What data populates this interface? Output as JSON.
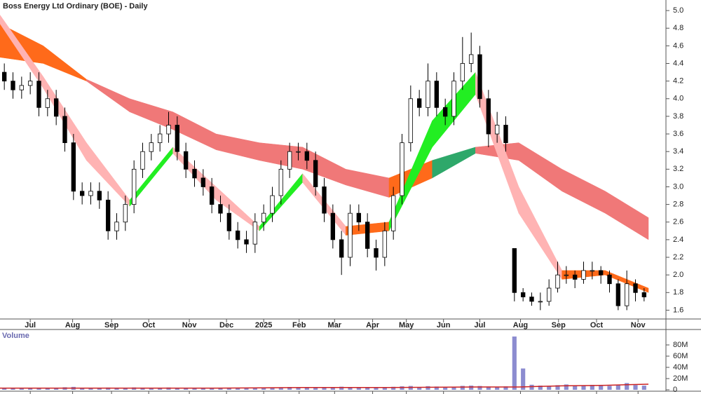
{
  "chart_data": {
    "type": "candlestick",
    "title": "Boss Energy Ltd Ordinary (BOE) - Daily",
    "xlim": [
      0,
      75
    ],
    "xticks": [
      {
        "value": 3.5,
        "label": "Jul"
      },
      {
        "value": 8.4,
        "label": "Aug"
      },
      {
        "value": 12.9,
        "label": "Sep"
      },
      {
        "value": 17.2,
        "label": "Oct"
      },
      {
        "value": 21.9,
        "label": "Nov"
      },
      {
        "value": 26.2,
        "label": "Dec"
      },
      {
        "value": 30.5,
        "label": "2025"
      },
      {
        "value": 34.6,
        "label": "Feb"
      },
      {
        "value": 38.7,
        "label": "Mar"
      },
      {
        "value": 43.1,
        "label": "Apr"
      },
      {
        "value": 47.0,
        "label": "May"
      },
      {
        "value": 51.3,
        "label": "Jun"
      },
      {
        "value": 55.5,
        "label": "Jul"
      },
      {
        "value": 60.2,
        "label": "Aug"
      },
      {
        "value": 64.6,
        "label": "Sep"
      },
      {
        "value": 69.0,
        "label": "Oct"
      },
      {
        "value": 73.8,
        "label": "Nov"
      }
    ],
    "ylim": [
      1.5,
      5.12
    ],
    "yticks": [
      1.6,
      1.8,
      {
        "value": 2,
        "label": "2.0"
      },
      2.2,
      2.4,
      2.6,
      2.8,
      {
        "value": 3,
        "label": "3.0"
      },
      3.2,
      3.4,
      3.6,
      3.8,
      {
        "value": 4,
        "label": "4.0"
      },
      4.2,
      4.4,
      4.6,
      4.8,
      {
        "value": 5,
        "label": "5.0"
      }
    ],
    "up_color": "#ffffff",
    "down_color": "#000000",
    "open": [
      4.3,
      4.2,
      4.1,
      4.15,
      4.2,
      3.9,
      4.0,
      3.8,
      3.5,
      2.95,
      2.9,
      2.95,
      2.85,
      2.5,
      2.6,
      2.8,
      3.2,
      3.4,
      3.5,
      3.6,
      3.7,
      3.4,
      3.2,
      3.1,
      3.0,
      2.8,
      2.7,
      2.5,
      2.4,
      2.35,
      2.6,
      2.7,
      2.9,
      3.2,
      3.4,
      3.4,
      3.3,
      3.0,
      2.7,
      2.4,
      2.2,
      2.7,
      2.6,
      2.3,
      2.2,
      2.5,
      2.9,
      3.5,
      4.0,
      3.9,
      4.2,
      3.9,
      3.8,
      4.2,
      4.4,
      4.5,
      4.0,
      3.6,
      3.7,
      2.3,
      1.8,
      1.75,
      1.7,
      1.7,
      1.85,
      2.0,
      2.0,
      1.95,
      2.05,
      2.05,
      2.0,
      1.9,
      1.65,
      1.9,
      1.8
    ],
    "high": [
      4.4,
      4.3,
      4.25,
      4.3,
      4.3,
      4.1,
      4.1,
      3.9,
      3.6,
      3.05,
      3.05,
      3.05,
      2.95,
      2.7,
      2.9,
      3.3,
      3.5,
      3.6,
      3.7,
      3.85,
      3.8,
      3.5,
      3.3,
      3.2,
      3.1,
      2.9,
      2.8,
      2.6,
      2.5,
      2.7,
      2.8,
      3.0,
      3.3,
      3.5,
      3.5,
      3.5,
      3.4,
      3.1,
      2.8,
      2.5,
      2.8,
      2.8,
      2.7,
      2.4,
      2.6,
      3.0,
      3.6,
      4.15,
      4.1,
      4.4,
      4.3,
      4.0,
      4.3,
      4.7,
      4.75,
      4.6,
      4.1,
      3.85,
      3.8,
      2.3,
      1.85,
      1.8,
      1.8,
      1.95,
      2.15,
      2.1,
      2.05,
      2.15,
      2.15,
      2.1,
      2.05,
      1.95,
      2.05,
      1.95,
      1.85
    ],
    "low": [
      4.1,
      4.0,
      4.0,
      4.05,
      3.8,
      3.8,
      3.7,
      3.4,
      2.85,
      2.8,
      2.8,
      2.75,
      2.4,
      2.4,
      2.5,
      2.7,
      3.1,
      3.3,
      3.4,
      3.5,
      3.3,
      3.1,
      3.0,
      2.9,
      2.7,
      2.6,
      2.4,
      2.3,
      2.25,
      2.25,
      2.5,
      2.6,
      2.8,
      3.1,
      3.3,
      3.2,
      2.9,
      2.6,
      2.3,
      2.0,
      2.1,
      2.5,
      2.2,
      2.05,
      2.1,
      2.4,
      2.8,
      3.4,
      3.8,
      3.8,
      3.8,
      3.7,
      3.7,
      4.1,
      4.3,
      3.9,
      3.45,
      3.5,
      3.4,
      1.7,
      1.7,
      1.65,
      1.6,
      1.65,
      1.8,
      1.9,
      1.85,
      1.9,
      1.95,
      1.9,
      1.8,
      1.6,
      1.6,
      1.7,
      1.7
    ],
    "close": [
      4.2,
      4.1,
      4.15,
      4.2,
      3.9,
      4.0,
      3.8,
      3.5,
      2.95,
      2.9,
      2.95,
      2.85,
      2.5,
      2.6,
      2.8,
      3.2,
      3.4,
      3.5,
      3.6,
      3.7,
      3.4,
      3.2,
      3.1,
      3.0,
      2.8,
      2.7,
      2.5,
      2.4,
      2.35,
      2.6,
      2.7,
      2.9,
      3.2,
      3.4,
      3.4,
      3.3,
      3.0,
      2.7,
      2.4,
      2.2,
      2.7,
      2.6,
      2.3,
      2.2,
      2.5,
      2.9,
      3.5,
      4.0,
      3.9,
      4.2,
      3.9,
      3.8,
      4.2,
      4.4,
      4.5,
      4.0,
      3.6,
      3.7,
      3.5,
      1.8,
      1.75,
      1.7,
      1.7,
      1.85,
      2.0,
      2.0,
      1.95,
      2.05,
      2.05,
      2.0,
      1.9,
      1.65,
      1.9,
      1.8,
      1.75
    ],
    "ribbons": [
      {
        "x": [
          0,
          5,
          10,
          15,
          20,
          25,
          30,
          35,
          40,
          45,
          50,
          55,
          60,
          65,
          70,
          75
        ],
        "fast": [
          4.85,
          4.6,
          4.22,
          4.0,
          3.85,
          3.6,
          3.5,
          3.45,
          3.2,
          3.1,
          3.3,
          3.45,
          3.5,
          3.2,
          2.95,
          2.65
        ],
        "slow": [
          4.47,
          4.4,
          4.2,
          3.85,
          3.65,
          3.42,
          3.3,
          3.2,
          3.02,
          2.88,
          3.1,
          3.38,
          3.3,
          2.95,
          2.7,
          2.4
        ],
        "colors": [
          "#ff6a1a",
          "#ff6a1a",
          "#f07878",
          "#f07878",
          "#f07878",
          "#f07878",
          "#f07878",
          "#f07878",
          "#f07878",
          "#ff6a1a",
          "#2ea86a",
          "#f07878",
          "#f07878",
          "#f07878",
          "#f07878"
        ]
      },
      {
        "x": [
          0,
          5,
          10,
          15,
          20,
          25,
          30,
          35,
          40,
          45,
          50,
          55,
          60,
          65,
          70,
          75
        ],
        "fast": [
          4.95,
          4.25,
          3.5,
          2.85,
          3.45,
          3.0,
          2.55,
          3.15,
          2.55,
          2.6,
          3.75,
          4.3,
          3.0,
          2.05,
          2.05,
          1.85
        ],
        "slow": [
          4.85,
          4.12,
          3.3,
          2.78,
          3.38,
          2.85,
          2.5,
          3.05,
          2.45,
          2.5,
          3.45,
          4.05,
          2.7,
          1.95,
          2.0,
          1.8
        ],
        "colors": [
          "#ffb3b3",
          "#ffb3b3",
          "#ffb3b3",
          "#22ee22",
          "#ffb3b3",
          "#ffb3b3",
          "#22ee22",
          "#ffb3b3",
          "#ff6a1a",
          "#22ee22",
          "#22ee22",
          "#ffb3b3",
          "#ffb3b3",
          "#ff6a1a",
          "#ff6a1a"
        ]
      }
    ],
    "volume": {
      "label": "Volume",
      "color": "#8c8cd0",
      "ylim": [
        0,
        100000000
      ],
      "yticks": [
        0,
        {
          "value": 20000000,
          "label": "20M"
        },
        {
          "value": 40000000,
          "label": "40M"
        },
        {
          "value": 60000000,
          "label": "60M"
        },
        {
          "value": 80000000,
          "label": "80M"
        }
      ],
      "values": [
        3200000,
        2800000,
        2500000,
        3000000,
        2700000,
        2600000,
        3100000,
        4500000,
        5200000,
        3000000,
        2800000,
        2600000,
        4000000,
        3500000,
        3000000,
        4200000,
        3800000,
        3400000,
        3000000,
        4100000,
        3300000,
        2900000,
        2700000,
        2600000,
        3000000,
        2800000,
        3200000,
        3500000,
        3100000,
        3600000,
        3300000,
        3800000,
        4500000,
        5000000,
        3900000,
        3600000,
        3400000,
        3800000,
        4200000,
        5500000,
        4800000,
        3500000,
        3700000,
        4600000,
        4200000,
        5300000,
        6200000,
        6800000,
        5000000,
        6500000,
        5800000,
        4800000,
        5500000,
        7000000,
        7500000,
        6800000,
        5900000,
        5200000,
        6100000,
        95000000,
        38000000,
        9000000,
        7500000,
        6800000,
        8200000,
        9500000,
        8000000,
        7200000,
        8800000,
        7800000,
        7000000,
        9200000,
        12000000,
        8500000,
        7400000
      ],
      "average": {
        "color": "#cc2222",
        "x": [
          0,
          5,
          10,
          15,
          20,
          25,
          30,
          35,
          40,
          45,
          50,
          55,
          60,
          65,
          70,
          75
        ],
        "values": [
          3000000,
          3000000,
          3000000,
          3000000,
          3000000,
          3000000,
          3500000,
          4000000,
          4000000,
          4000000,
          4500000,
          5000000,
          5000000,
          7000000,
          8000000,
          10000000
        ]
      }
    }
  }
}
